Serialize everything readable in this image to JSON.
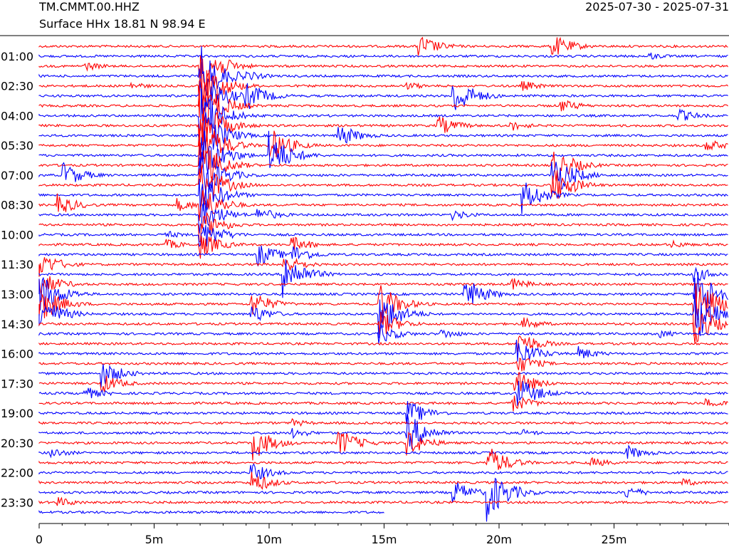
{
  "header": {
    "station": "TM.CMMT.00.HHZ",
    "location": "Surface HHx  18.81 N 98.94 E",
    "date_range": "2025-07-30 - 2025-07-31"
  },
  "colors": {
    "odd": "#ff0000",
    "even": "#0000ff",
    "axis": "#000000"
  },
  "chart_data": {
    "type": "line",
    "title": "",
    "xlabel": "",
    "ylabel": "",
    "xlim": [
      0,
      30
    ],
    "x_ticks": [
      "0",
      "5m",
      "10m",
      "15m",
      "20m",
      "25m"
    ],
    "x_tick_values": [
      0,
      5,
      10,
      15,
      20,
      25
    ],
    "x_minor_step": 1,
    "y_tick_labels": [
      "01:00",
      "02:30",
      "04:00",
      "05:30",
      "07:00",
      "08:30",
      "10:00",
      "11:30",
      "13:00",
      "14:30",
      "16:00",
      "17:30",
      "19:00",
      "20:30",
      "22:00",
      "23:30"
    ],
    "y_tick_rows": [
      1,
      4,
      7,
      10,
      13,
      16,
      19,
      22,
      25,
      28,
      31,
      34,
      37,
      40,
      43,
      46
    ],
    "trace_count": 48,
    "last_trace_end_minute": 15,
    "series": [
      {
        "row": 0,
        "events": [
          [
            16.5,
            18
          ],
          [
            22.3,
            18
          ]
        ]
      },
      {
        "row": 1,
        "events": [
          [
            26.5,
            6
          ]
        ]
      },
      {
        "row": 2,
        "events": [
          [
            2.0,
            7
          ],
          [
            7.0,
            40
          ]
        ]
      },
      {
        "row": 3,
        "events": [
          [
            7.0,
            45
          ],
          [
            9.0,
            8
          ]
        ]
      },
      {
        "row": 4,
        "events": [
          [
            7.0,
            45
          ],
          [
            4.0,
            6
          ],
          [
            16.0,
            6
          ],
          [
            21.0,
            8
          ]
        ]
      },
      {
        "row": 5,
        "events": [
          [
            7.0,
            45
          ],
          [
            9.0,
            22
          ],
          [
            18.0,
            30
          ]
        ]
      },
      {
        "row": 6,
        "events": [
          [
            7.0,
            45
          ],
          [
            22.7,
            10
          ]
        ]
      },
      {
        "row": 7,
        "events": [
          [
            7.0,
            45
          ],
          [
            27.8,
            10
          ]
        ]
      },
      {
        "row": 8,
        "events": [
          [
            7.0,
            45
          ],
          [
            17.3,
            16
          ],
          [
            20.5,
            8
          ]
        ]
      },
      {
        "row": 9,
        "events": [
          [
            7.0,
            45
          ],
          [
            13.0,
            18
          ]
        ]
      },
      {
        "row": 10,
        "events": [
          [
            7.0,
            45
          ],
          [
            10.0,
            28
          ],
          [
            29.0,
            10
          ]
        ]
      },
      {
        "row": 11,
        "events": [
          [
            7.0,
            45
          ],
          [
            10.0,
            35
          ]
        ]
      },
      {
        "row": 12,
        "events": [
          [
            7.0,
            40
          ],
          [
            22.3,
            30
          ]
        ]
      },
      {
        "row": 13,
        "events": [
          [
            1.0,
            20
          ],
          [
            7.0,
            40
          ],
          [
            22.3,
            35
          ]
        ]
      },
      {
        "row": 14,
        "events": [
          [
            7.0,
            40
          ],
          [
            22.3,
            30
          ]
        ]
      },
      {
        "row": 15,
        "events": [
          [
            7.0,
            35
          ],
          [
            21.0,
            28
          ]
        ]
      },
      {
        "row": 16,
        "events": [
          [
            0.8,
            16
          ],
          [
            6.0,
            10
          ],
          [
            7.0,
            30
          ]
        ]
      },
      {
        "row": 17,
        "events": [
          [
            7.0,
            28
          ],
          [
            9.5,
            12
          ],
          [
            18.0,
            8
          ]
        ]
      },
      {
        "row": 18,
        "events": [
          [
            7.0,
            25
          ]
        ]
      },
      {
        "row": 19,
        "events": [
          [
            7.0,
            25
          ],
          [
            5.5,
            6
          ]
        ]
      },
      {
        "row": 20,
        "events": [
          [
            7.0,
            20
          ],
          [
            11.0,
            12
          ],
          [
            5.5,
            8
          ],
          [
            27.5,
            6
          ]
        ]
      },
      {
        "row": 21,
        "events": [
          [
            9.5,
            18
          ],
          [
            11.0,
            15
          ]
        ]
      },
      {
        "row": 22,
        "events": [
          [
            0.0,
            20
          ],
          [
            10.6,
            15
          ]
        ]
      },
      {
        "row": 23,
        "events": [
          [
            10.6,
            35
          ],
          [
            28.5,
            12
          ]
        ]
      },
      {
        "row": 24,
        "events": [
          [
            0.0,
            20
          ],
          [
            20.5,
            10
          ]
        ]
      },
      {
        "row": 25,
        "events": [
          [
            0.0,
            35
          ],
          [
            18.5,
            25
          ],
          [
            28.5,
            45
          ]
        ]
      },
      {
        "row": 26,
        "events": [
          [
            0.0,
            30
          ],
          [
            9.2,
            20
          ],
          [
            14.8,
            30
          ],
          [
            28.5,
            45
          ]
        ]
      },
      {
        "row": 27,
        "events": [
          [
            0.0,
            30
          ],
          [
            9.2,
            15
          ],
          [
            14.8,
            35
          ],
          [
            28.5,
            45
          ]
        ]
      },
      {
        "row": 28,
        "events": [
          [
            14.8,
            20
          ],
          [
            21.0,
            10
          ],
          [
            28.5,
            30
          ]
        ]
      },
      {
        "row": 29,
        "events": [
          [
            14.8,
            15
          ],
          [
            17.5,
            8
          ],
          [
            27.0,
            6
          ]
        ]
      },
      {
        "row": 30,
        "events": [
          [
            20.8,
            20
          ]
        ]
      },
      {
        "row": 31,
        "events": [
          [
            20.8,
            22
          ],
          [
            23.5,
            10
          ]
        ]
      },
      {
        "row": 32,
        "events": [
          [
            20.8,
            15
          ]
        ]
      },
      {
        "row": 33,
        "events": [
          [
            2.7,
            20
          ]
        ]
      },
      {
        "row": 34,
        "events": [
          [
            2.7,
            15
          ],
          [
            20.7,
            20
          ]
        ]
      },
      {
        "row": 35,
        "events": [
          [
            2.0,
            10
          ],
          [
            20.8,
            25
          ]
        ]
      },
      {
        "row": 36,
        "events": [
          [
            20.5,
            15
          ],
          [
            29.0,
            8
          ]
        ]
      },
      {
        "row": 37,
        "events": [
          [
            16.0,
            20
          ]
        ]
      },
      {
        "row": 38,
        "events": [
          [
            11.0,
            6
          ]
        ]
      },
      {
        "row": 39,
        "events": [
          [
            16.0,
            30
          ],
          [
            11.0,
            8
          ],
          [
            21.0,
            6
          ]
        ]
      },
      {
        "row": 40,
        "events": [
          [
            9.3,
            25
          ],
          [
            13.0,
            22
          ],
          [
            16.0,
            20
          ]
        ]
      },
      {
        "row": 41,
        "events": [
          [
            0.5,
            8
          ],
          [
            25.5,
            12
          ]
        ]
      },
      {
        "row": 42,
        "events": [
          [
            19.5,
            25
          ],
          [
            24.0,
            8
          ]
        ]
      },
      {
        "row": 43,
        "events": [
          [
            9.2,
            15
          ]
        ]
      },
      {
        "row": 44,
        "events": [
          [
            9.2,
            18
          ],
          [
            28.0,
            6
          ]
        ]
      },
      {
        "row": 45,
        "events": [
          [
            18.0,
            18
          ],
          [
            19.5,
            40
          ],
          [
            25.5,
            10
          ]
        ]
      },
      {
        "row": 46,
        "events": [
          [
            0.8,
            8
          ]
        ]
      },
      {
        "row": 47,
        "events": [
          [
            19.5,
            30
          ]
        ]
      }
    ]
  }
}
